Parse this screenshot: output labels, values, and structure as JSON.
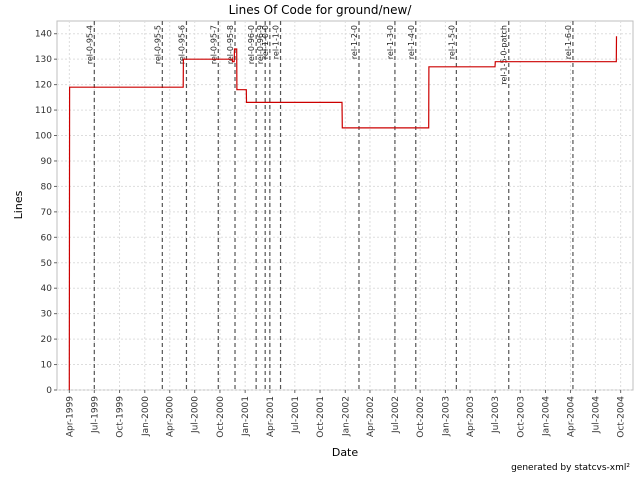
{
  "chart_data": {
    "type": "line",
    "title": "Lines Of Code for ground/new/",
    "xlabel": "Date",
    "ylabel": "Lines",
    "ylim": [
      0,
      145
    ],
    "yticks": [
      0,
      10,
      20,
      30,
      40,
      50,
      60,
      70,
      80,
      90,
      100,
      110,
      120,
      130,
      140
    ],
    "xlim": [
      "1999-02-15",
      "2004-11-15"
    ],
    "xticks": [
      {
        "date": "1999-04-01",
        "label": "Apr-1999"
      },
      {
        "date": "1999-07-01",
        "label": "Jul-1999"
      },
      {
        "date": "1999-10-01",
        "label": "Oct-1999"
      },
      {
        "date": "2000-01-01",
        "label": "Jan-2000"
      },
      {
        "date": "2000-04-01",
        "label": "Apr-2000"
      },
      {
        "date": "2000-07-01",
        "label": "Jul-2000"
      },
      {
        "date": "2000-10-01",
        "label": "Oct-2000"
      },
      {
        "date": "2001-01-01",
        "label": "Jan-2001"
      },
      {
        "date": "2001-04-01",
        "label": "Apr-2001"
      },
      {
        "date": "2001-07-01",
        "label": "Jul-2001"
      },
      {
        "date": "2001-10-01",
        "label": "Oct-2001"
      },
      {
        "date": "2002-01-01",
        "label": "Jan-2002"
      },
      {
        "date": "2002-04-01",
        "label": "Apr-2002"
      },
      {
        "date": "2002-07-01",
        "label": "Jul-2002"
      },
      {
        "date": "2002-10-01",
        "label": "Oct-2002"
      },
      {
        "date": "2003-01-01",
        "label": "Jan-2003"
      },
      {
        "date": "2003-04-01",
        "label": "Apr-2003"
      },
      {
        "date": "2003-07-01",
        "label": "Jul-2003"
      },
      {
        "date": "2003-10-01",
        "label": "Oct-2003"
      },
      {
        "date": "2004-01-01",
        "label": "Jan-2004"
      },
      {
        "date": "2004-04-01",
        "label": "Apr-2004"
      },
      {
        "date": "2004-07-01",
        "label": "Jul-2004"
      },
      {
        "date": "2004-10-01",
        "label": "Oct-2004"
      }
    ],
    "grid": true,
    "line_color": "#cc0000",
    "series": [
      {
        "points": [
          [
            "1999-04-01",
            0
          ],
          [
            "1999-04-02",
            119
          ],
          [
            "2000-05-20",
            119
          ],
          [
            "2000-05-21",
            130
          ],
          [
            "2000-11-15",
            130
          ],
          [
            "2000-11-16",
            129
          ],
          [
            "2000-11-22",
            129
          ],
          [
            "2000-11-23",
            134
          ],
          [
            "2000-12-01",
            134
          ],
          [
            "2000-12-02",
            118
          ],
          [
            "2001-01-05",
            118
          ],
          [
            "2001-01-06",
            113
          ],
          [
            "2001-12-20",
            113
          ],
          [
            "2001-12-21",
            103
          ],
          [
            "2002-11-01",
            103
          ],
          [
            "2002-11-02",
            127
          ],
          [
            "2003-07-01",
            127
          ],
          [
            "2003-07-02",
            129
          ],
          [
            "2004-09-15",
            129
          ],
          [
            "2004-09-16",
            139
          ]
        ]
      }
    ],
    "tags": [
      {
        "label": "rel-0-95-4",
        "date": "1999-07-01"
      },
      {
        "label": "rel-0-95-5",
        "date": "2000-03-05"
      },
      {
        "label": "rel-0-95-6",
        "date": "2000-06-01"
      },
      {
        "label": "rel-0-95-7",
        "date": "2000-09-25"
      },
      {
        "label": "rel-0-95-8",
        "date": "2000-11-25"
      },
      {
        "label": "rel-0-96-0",
        "date": "2001-02-10"
      },
      {
        "label": "rel-0-96-9",
        "date": "2001-03-15"
      },
      {
        "label": "rel-1-0-0",
        "date": "2001-04-01"
      },
      {
        "label": "rel-1-1-0",
        "date": "2001-05-10"
      },
      {
        "label": "rel-1-2-0",
        "date": "2002-02-20"
      },
      {
        "label": "rel-1-3-0",
        "date": "2002-07-01"
      },
      {
        "label": "rel-1-4-0",
        "date": "2002-09-15"
      },
      {
        "label": "rel-1-5-0",
        "date": "2003-02-10"
      },
      {
        "label": "rel-1-5-0-patch",
        "date": "2003-08-20"
      },
      {
        "label": "rel-1-6-0",
        "date": "2004-04-10"
      }
    ]
  },
  "footer": {
    "credit": "generated by statcvs-xml²"
  }
}
